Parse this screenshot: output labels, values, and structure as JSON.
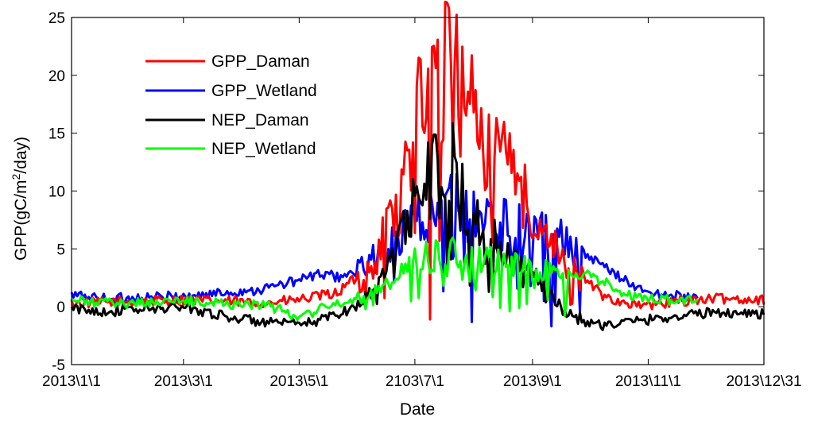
{
  "chart_data": {
    "type": "line",
    "title": "",
    "xlabel": "Date",
    "ylabel_main": "GPP(gC/m",
    "ylabel_sup": "2",
    "ylabel_tail": "/day)",
    "ylim": [
      -5,
      25
    ],
    "yticks": [
      -5,
      0,
      5,
      10,
      15,
      20,
      25
    ],
    "xlim": [
      0,
      365
    ],
    "xticks": [
      {
        "day": 0,
        "label": "2013\\1\\1"
      },
      {
        "day": 59,
        "label": "2013\\3\\1"
      },
      {
        "day": 120,
        "label": "2013\\5\\1"
      },
      {
        "day": 181,
        "label": "2103\\7\\1"
      },
      {
        "day": 243,
        "label": "2013\\9\\1"
      },
      {
        "day": 304,
        "label": "2013\\11\\1"
      },
      {
        "day": 365,
        "label": "2013\\12\\31"
      }
    ],
    "grid": false,
    "legend_position": "top-left",
    "series": [
      {
        "name": "GPP_Daman",
        "color": "#ff0000",
        "x_end": 365,
        "x": [
          0,
          20,
          40,
          60,
          80,
          100,
          120,
          140,
          150,
          160,
          165,
          170,
          175,
          180,
          185,
          190,
          195,
          200,
          205,
          210,
          215,
          220,
          225,
          230,
          235,
          240,
          245,
          250,
          255,
          260,
          270,
          280,
          290,
          300,
          310,
          320,
          330,
          340,
          350,
          365
        ],
        "y": [
          0.3,
          0.4,
          0.5,
          0.6,
          0.5,
          0.3,
          0.6,
          1.2,
          2.5,
          3.5,
          6.5,
          8.0,
          10.5,
          14.5,
          17.5,
          20.0,
          19.0,
          21.0,
          18.0,
          16.5,
          14.5,
          13.0,
          12.5,
          11.5,
          10.5,
          9.5,
          8.5,
          7.0,
          5.0,
          4.0,
          2.5,
          1.0,
          0.4,
          0.1,
          0.2,
          0.5,
          0.6,
          0.7,
          0.7,
          0.6
        ]
      },
      {
        "name": "GPP_Wetland",
        "color": "#0000ff",
        "x_end": 330,
        "x": [
          0,
          20,
          40,
          60,
          80,
          100,
          120,
          130,
          140,
          150,
          160,
          170,
          180,
          190,
          200,
          210,
          220,
          230,
          240,
          250,
          260,
          270,
          280,
          290,
          300,
          310,
          320,
          330
        ],
        "y": [
          1.0,
          0.7,
          0.8,
          0.9,
          1.2,
          1.5,
          2.3,
          2.8,
          2.6,
          2.9,
          4.2,
          6.0,
          7.5,
          7.8,
          8.8,
          8.0,
          7.5,
          7.0,
          6.5,
          6.0,
          5.5,
          4.5,
          3.5,
          2.5,
          1.5,
          1.0,
          0.9,
          0.8
        ]
      },
      {
        "name": "NEP_Daman",
        "color": "#000000",
        "x_end": 365,
        "x": [
          0,
          20,
          40,
          60,
          80,
          100,
          120,
          130,
          140,
          150,
          160,
          165,
          170,
          175,
          180,
          185,
          190,
          195,
          200,
          205,
          210,
          215,
          220,
          225,
          230,
          235,
          240,
          245,
          250,
          255,
          260,
          270,
          280,
          290,
          300,
          310,
          320,
          330,
          340,
          350,
          365
        ],
        "y": [
          -0.2,
          -0.4,
          -0.2,
          0.0,
          -0.8,
          -1.3,
          -1.6,
          -1.2,
          -0.6,
          0.0,
          1.5,
          3.0,
          5.0,
          7.0,
          9.5,
          11.0,
          11.5,
          10.5,
          12.5,
          10.0,
          8.5,
          7.5,
          6.5,
          5.5,
          4.5,
          3.8,
          3.2,
          2.5,
          1.5,
          0.5,
          -0.3,
          -1.2,
          -1.6,
          -1.4,
          -1.2,
          -1.0,
          -0.8,
          -0.6,
          -0.5,
          -0.5,
          -0.6
        ]
      },
      {
        "name": "NEP_Wetland",
        "color": "#00ff00",
        "x_end": 330,
        "x": [
          0,
          20,
          40,
          60,
          80,
          100,
          120,
          130,
          140,
          150,
          160,
          170,
          180,
          190,
          200,
          210,
          220,
          230,
          240,
          250,
          260,
          270,
          280,
          290,
          300,
          310,
          320,
          330
        ],
        "y": [
          0.5,
          0.3,
          0.4,
          0.5,
          0.3,
          0.2,
          -0.8,
          -0.3,
          0.3,
          0.6,
          1.5,
          2.5,
          4.0,
          4.5,
          5.0,
          4.5,
          4.0,
          3.6,
          3.2,
          3.0,
          3.0,
          2.8,
          2.2,
          1.2,
          0.8,
          0.6,
          0.6,
          0.5
        ]
      }
    ]
  }
}
